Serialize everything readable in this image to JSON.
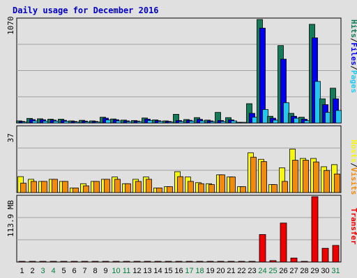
{
  "title": "Daily usage for December 2016",
  "colors": {
    "background": "#e0e0e0",
    "hits": "#137a5a",
    "files": "#0000ee",
    "pages": "#22c8f0",
    "hosts": "#f7f70f",
    "visits": "#f28a0c",
    "transfer": "#ee0000",
    "weekend_label": "#00803a",
    "weekday_label": "#000000",
    "title_color": "#0000c0"
  },
  "chart_data": [
    {
      "type": "bar",
      "panel": "top",
      "max_label": "1070",
      "ylim": [
        0,
        1070
      ],
      "right_labels": [
        "Hits",
        "Files",
        "Pages"
      ],
      "categories": [
        "1",
        "2",
        "3",
        "4",
        "5",
        "6",
        "7",
        "8",
        "9",
        "10",
        "11",
        "12",
        "13",
        "14",
        "15",
        "16",
        "17",
        "18",
        "19",
        "20",
        "21",
        "22",
        "23",
        "24",
        "25",
        "26",
        "27",
        "28",
        "29",
        "30",
        "31"
      ],
      "weekend_days": [
        "3",
        "4",
        "10",
        "11",
        "17",
        "18",
        "24",
        "25",
        "31"
      ],
      "series": [
        {
          "name": "Hits",
          "values": [
            22,
            48,
            44,
            40,
            40,
            22,
            28,
            22,
            60,
            42,
            30,
            26,
            52,
            32,
            22,
            90,
            36,
            56,
            30,
            110,
            56,
            8,
            200,
            1070,
            70,
            800,
            100,
            60,
            1020,
            250,
            360
          ]
        },
        {
          "name": "Files",
          "values": [
            16,
            36,
            34,
            30,
            28,
            16,
            20,
            16,
            50,
            34,
            22,
            20,
            40,
            24,
            16,
            26,
            28,
            38,
            22,
            26,
            32,
            6,
            100,
            980,
            50,
            660,
            70,
            40,
            880,
            190,
            250
          ]
        },
        {
          "name": "Pages",
          "values": [
            10,
            22,
            20,
            20,
            18,
            10,
            12,
            10,
            32,
            22,
            14,
            14,
            26,
            16,
            10,
            16,
            20,
            22,
            14,
            16,
            22,
            4,
            60,
            140,
            30,
            210,
            50,
            24,
            430,
            110,
            130
          ]
        }
      ]
    },
    {
      "type": "bar",
      "panel": "middle",
      "max_label": "37",
      "ylim": [
        0,
        37
      ],
      "right_labels": [
        "Hosts",
        "Visits"
      ],
      "categories": [
        "1",
        "2",
        "3",
        "4",
        "5",
        "6",
        "7",
        "8",
        "9",
        "10",
        "11",
        "12",
        "13",
        "14",
        "15",
        "16",
        "17",
        "18",
        "19",
        "20",
        "21",
        "22",
        "23",
        "24",
        "25",
        "26",
        "27",
        "28",
        "29",
        "30",
        "31"
      ],
      "series": [
        {
          "name": "Hosts",
          "values": [
            9,
            7.5,
            6.3,
            7.5,
            6.3,
            2.6,
            5,
            6.3,
            7.5,
            8.8,
            5,
            7.5,
            8.8,
            2.6,
            3.3,
            11.8,
            8.8,
            5.6,
            5,
            10,
            8.8,
            3.3,
            22.5,
            18.8,
            4.5,
            14,
            24.6,
            19.3,
            19.3,
            14.6,
            15.8
          ]
        },
        {
          "name": "Visits",
          "values": [
            5.3,
            6.3,
            6.3,
            7.5,
            6.3,
            2.6,
            3.8,
            6.3,
            7.5,
            7.5,
            5,
            6.3,
            7.5,
            2.6,
            3.3,
            9,
            6.3,
            5,
            4.5,
            10,
            8.8,
            3.3,
            20,
            17.5,
            4.5,
            6.3,
            18.3,
            18.3,
            17.3,
            12.5,
            10.5
          ]
        }
      ]
    },
    {
      "type": "bar",
      "panel": "bottom",
      "max_label": "113.9 MB",
      "ylim": [
        0,
        113.9
      ],
      "right_labels": [
        "Transfer"
      ],
      "categories": [
        "1",
        "2",
        "3",
        "4",
        "5",
        "6",
        "7",
        "8",
        "9",
        "10",
        "11",
        "12",
        "13",
        "14",
        "15",
        "16",
        "17",
        "18",
        "19",
        "20",
        "21",
        "22",
        "23",
        "24",
        "25",
        "26",
        "27",
        "28",
        "29",
        "30",
        "31"
      ],
      "series": [
        {
          "name": "Transfer",
          "values": [
            0.3,
            0.3,
            0.3,
            0.3,
            0.3,
            0.3,
            0.3,
            0.3,
            0.3,
            0.3,
            0.3,
            0.3,
            0.3,
            0.3,
            0.3,
            0.3,
            0.3,
            0.3,
            0.3,
            0.3,
            0.3,
            0.3,
            0.3,
            48,
            2.5,
            68,
            7,
            0.5,
            113.9,
            24,
            29
          ]
        }
      ]
    }
  ]
}
